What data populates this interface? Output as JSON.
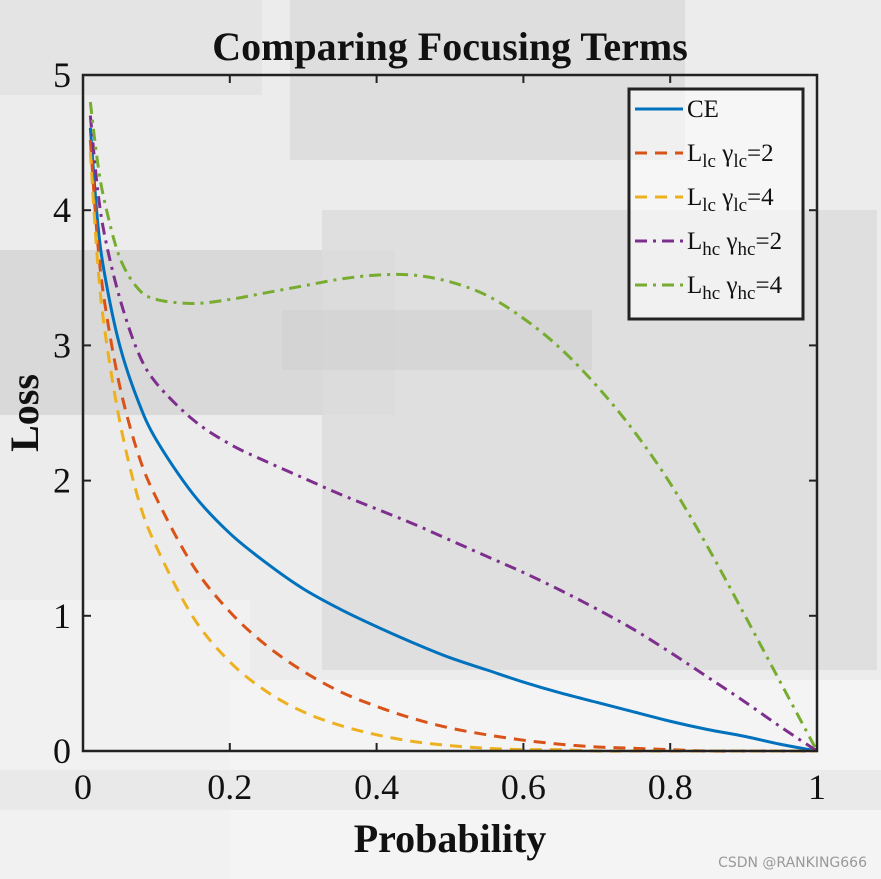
{
  "watermark": "CSDN @RANKING666",
  "chart_data": {
    "type": "line",
    "title": "Comparing Focusing Terms",
    "xlabel": "Probability",
    "ylabel": "Loss",
    "xlim": [
      0,
      1
    ],
    "ylim": [
      0,
      5
    ],
    "xticks": [
      "0",
      "0.2",
      "0.4",
      "0.6",
      "0.8",
      "1"
    ],
    "yticks": [
      "0",
      "1",
      "2",
      "3",
      "4",
      "5"
    ],
    "grid": false,
    "legend_position": "top-right",
    "x": [
      0.01,
      0.02,
      0.03,
      0.05,
      0.075,
      0.1,
      0.15,
      0.2,
      0.25,
      0.3,
      0.35,
      0.4,
      0.45,
      0.5,
      0.55,
      0.6,
      0.65,
      0.7,
      0.75,
      0.8,
      0.85,
      0.9,
      0.95,
      1.0
    ],
    "series": [
      {
        "name": "CE",
        "legend_main": "CE",
        "legend_sub": "",
        "legend_greek": "",
        "legend_sub2": "",
        "legend_suffix": "",
        "color": "#0072BD",
        "dash": "solid",
        "values": [
          4.61,
          3.91,
          3.51,
          3.0,
          2.59,
          2.3,
          1.9,
          1.61,
          1.39,
          1.2,
          1.05,
          0.92,
          0.8,
          0.69,
          0.6,
          0.51,
          0.43,
          0.36,
          0.29,
          0.22,
          0.16,
          0.11,
          0.05,
          0.0
        ]
      },
      {
        "name": "L_lc γ_lc=2",
        "legend_main": "L",
        "legend_sub": "lc",
        "legend_greek": "γ",
        "legend_sub2": "lc",
        "legend_suffix": "=2",
        "color": "#D95319",
        "dash": "dashed",
        "values": [
          4.52,
          3.76,
          3.3,
          2.7,
          2.2,
          1.87,
          1.37,
          1.03,
          0.78,
          0.59,
          0.44,
          0.33,
          0.24,
          0.17,
          0.12,
          0.08,
          0.05,
          0.03,
          0.02,
          0.01,
          0.0,
          0.0,
          0.0,
          0.0
        ]
      },
      {
        "name": "L_lc γ_lc=4",
        "legend_main": "L",
        "legend_sub": "lc",
        "legend_greek": "γ",
        "legend_sub2": "lc",
        "legend_suffix": "=4",
        "color": "#EDB120",
        "dash": "dashed",
        "values": [
          4.43,
          3.61,
          3.1,
          2.44,
          1.87,
          1.51,
          0.99,
          0.66,
          0.44,
          0.29,
          0.19,
          0.12,
          0.07,
          0.04,
          0.02,
          0.01,
          0.01,
          0.0,
          0.0,
          0.0,
          0.0,
          0.0,
          0.0,
          0.0
        ]
      },
      {
        "name": "L_hc γ_hc=2",
        "legend_main": "L",
        "legend_sub": "hc",
        "legend_greek": "γ",
        "legend_sub2": "hc",
        "legend_suffix": "=2",
        "color": "#7E2F8E",
        "dash": "dashdot",
        "values": [
          4.7,
          4.15,
          3.8,
          3.35,
          2.95,
          2.72,
          2.45,
          2.27,
          2.14,
          2.02,
          1.9,
          1.79,
          1.68,
          1.56,
          1.44,
          1.32,
          1.19,
          1.05,
          0.9,
          0.73,
          0.55,
          0.37,
          0.18,
          0.0
        ]
      },
      {
        "name": "L_hc γ_hc=4",
        "legend_main": "L",
        "legend_sub": "hc",
        "legend_greek": "γ",
        "legend_sub2": "hc",
        "legend_suffix": "=4",
        "color": "#77AC30",
        "dash": "dashdot",
        "values": [
          4.8,
          4.35,
          4.05,
          3.65,
          3.42,
          3.34,
          3.31,
          3.34,
          3.39,
          3.44,
          3.49,
          3.52,
          3.52,
          3.47,
          3.37,
          3.2,
          2.98,
          2.7,
          2.37,
          1.98,
          1.52,
          1.02,
          0.51,
          0.0
        ]
      }
    ]
  }
}
